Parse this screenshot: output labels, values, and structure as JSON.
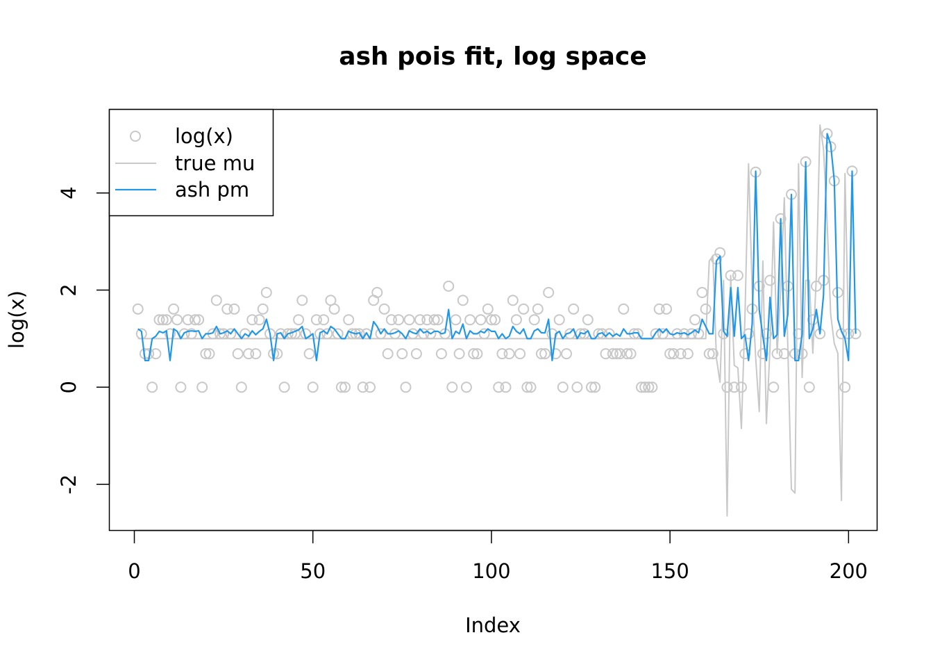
{
  "chart_data": {
    "type": "scatter",
    "title": "ash pois fit, log space",
    "xlabel": "Index",
    "ylabel": "log(x)",
    "xlim": [
      -7,
      208
    ],
    "ylim": [
      -2.95,
      5.72
    ],
    "x_ticks": [
      0,
      50,
      100,
      150,
      200
    ],
    "x_tick_labels": [
      "0",
      "50",
      "100",
      "150",
      "200"
    ],
    "y_ticks": [
      -2,
      0,
      2,
      4
    ],
    "y_tick_labels": [
      "-2",
      "0",
      "2",
      "4"
    ],
    "legend_position": "top-left",
    "colors": {
      "points": "#c8c8c8",
      "true_mu": "#c8c8c8",
      "ash_pm": "#2297e6",
      "frame": "#000000"
    },
    "series": [
      {
        "name": "log(x)",
        "kind": "points",
        "values": [
          1.61,
          1.1,
          0.69,
          0.69,
          0.0,
          0.69,
          1.39,
          1.39,
          1.39,
          1.1,
          1.61,
          1.39,
          0.0,
          1.1,
          1.39,
          1.1,
          1.39,
          1.39,
          0.0,
          0.69,
          0.69,
          1.1,
          1.79,
          1.1,
          1.1,
          1.61,
          1.1,
          1.61,
          0.69,
          0.0,
          1.1,
          0.69,
          1.39,
          0.69,
          1.39,
          1.61,
          1.95,
          1.1,
          0.69,
          0.69,
          1.1,
          0.0,
          1.1,
          1.1,
          1.1,
          1.39,
          1.79,
          1.1,
          0.69,
          0.0,
          1.39,
          1.1,
          1.39,
          1.1,
          1.79,
          1.61,
          1.1,
          0.0,
          0.0,
          1.39,
          1.1,
          1.1,
          1.1,
          0.0,
          1.1,
          0.0,
          1.79,
          1.95,
          1.1,
          1.61,
          0.69,
          1.39,
          1.1,
          1.39,
          0.69,
          0.0,
          1.39,
          1.1,
          0.69,
          1.39,
          1.1,
          1.39,
          1.1,
          1.39,
          1.39,
          0.69,
          1.1,
          2.08,
          0.0,
          1.39,
          0.69,
          1.79,
          0.0,
          1.39,
          0.69,
          0.69,
          1.39,
          1.1,
          1.61,
          1.39,
          1.39,
          0.0,
          0.69,
          0.0,
          0.69,
          1.79,
          1.39,
          0.69,
          1.61,
          0.0,
          0.0,
          1.39,
          1.61,
          0.69,
          0.69,
          1.95,
          1.1,
          0.69,
          1.39,
          0.0,
          0.69,
          1.1,
          1.61,
          0.0,
          1.1,
          1.1,
          1.39,
          0.0,
          0.0,
          1.1,
          1.1,
          0.69,
          1.1,
          0.69,
          0.69,
          0.69,
          1.61,
          0.69,
          0.69,
          1.1,
          1.1,
          0.0,
          0.0,
          0.0,
          0.0,
          1.1,
          1.61,
          1.1,
          1.61,
          0.69,
          0.69,
          1.1,
          0.69,
          1.1,
          0.69,
          1.1,
          1.39,
          1.1,
          1.95,
          1.61,
          0.69,
          0.69,
          2.64,
          2.77,
          1.1,
          0.0,
          2.3,
          0.0,
          2.3,
          0.0,
          0.69,
          1.1,
          1.61,
          4.43,
          2.08,
          0.69,
          1.1,
          2.2,
          0.0,
          0.69,
          3.47,
          0.69,
          2.08,
          3.97,
          0.69,
          1.1,
          0.69,
          4.64,
          0.0,
          1.39,
          2.08,
          1.1,
          2.2,
          5.22,
          4.95,
          4.25,
          1.95,
          1.1,
          0.0,
          1.1,
          4.45,
          1.1
        ]
      },
      {
        "name": "true mu",
        "kind": "line",
        "values": [
          1.0,
          1.0,
          1.0,
          1.0,
          1.0,
          1.0,
          1.0,
          1.0,
          1.0,
          1.0,
          1.0,
          1.0,
          1.0,
          1.0,
          1.0,
          1.0,
          1.0,
          1.0,
          1.0,
          1.0,
          1.0,
          1.0,
          1.0,
          1.0,
          1.0,
          1.0,
          1.0,
          1.0,
          1.0,
          1.0,
          1.0,
          1.0,
          1.0,
          1.0,
          1.0,
          1.0,
          1.0,
          1.0,
          1.0,
          1.0,
          1.0,
          1.0,
          1.0,
          1.0,
          1.0,
          1.0,
          1.0,
          1.0,
          1.0,
          1.0,
          1.0,
          1.0,
          1.0,
          1.0,
          1.0,
          1.0,
          1.0,
          1.0,
          1.0,
          1.0,
          1.0,
          1.0,
          1.0,
          1.0,
          1.0,
          1.0,
          1.0,
          1.0,
          1.0,
          1.0,
          1.0,
          1.0,
          1.0,
          1.0,
          1.0,
          1.0,
          1.0,
          1.0,
          1.0,
          1.0,
          1.0,
          1.0,
          1.0,
          1.0,
          1.0,
          1.0,
          1.0,
          1.0,
          1.0,
          1.0,
          1.0,
          1.0,
          1.0,
          1.0,
          1.0,
          1.0,
          1.0,
          1.0,
          1.0,
          1.0,
          1.0,
          1.0,
          1.0,
          1.0,
          1.0,
          1.0,
          1.0,
          1.0,
          1.0,
          1.0,
          1.0,
          1.0,
          1.0,
          1.0,
          1.0,
          1.0,
          1.0,
          1.0,
          1.0,
          1.0,
          1.0,
          1.0,
          1.0,
          1.0,
          1.0,
          1.0,
          1.0,
          1.0,
          1.0,
          1.0,
          1.0,
          1.0,
          1.0,
          1.0,
          1.0,
          1.0,
          1.0,
          1.0,
          1.0,
          1.0,
          1.0,
          1.0,
          1.0,
          1.0,
          1.0,
          1.0,
          1.0,
          1.0,
          1.0,
          1.0,
          1.0,
          1.0,
          1.0,
          1.0,
          1.0,
          1.0,
          1.0,
          1.0,
          1.0,
          1.0,
          2.6,
          2.7,
          0.6,
          0.1,
          2.2,
          -2.65,
          2.3,
          0.45,
          0.4,
          -0.85,
          1.5,
          4.6,
          2.0,
          0.6,
          -0.5,
          2.6,
          -0.75,
          0.8,
          3.4,
          0.7,
          2.0,
          3.9,
          0.8,
          -2.1,
          -2.18,
          4.6,
          0.2,
          2.2,
          2.2,
          0.7,
          2.3,
          5.4,
          4.9,
          3.4,
          1.5,
          0.9,
          0.7,
          -2.33,
          4.4,
          1.1
        ]
      },
      {
        "name": "ash pm",
        "kind": "line",
        "values": [
          1.2,
          1.15,
          0.55,
          0.55,
          1.0,
          1.05,
          1.15,
          1.12,
          1.16,
          0.55,
          1.2,
          1.15,
          1.0,
          1.12,
          1.15,
          1.16,
          1.15,
          1.16,
          1.0,
          1.1,
          1.1,
          1.12,
          1.25,
          1.1,
          1.12,
          1.16,
          1.1,
          1.2,
          1.1,
          1.0,
          1.1,
          1.05,
          1.16,
          1.08,
          1.15,
          1.2,
          1.4,
          1.1,
          0.55,
          1.1,
          1.12,
          1.0,
          1.1,
          1.12,
          1.15,
          1.18,
          1.25,
          1.0,
          1.05,
          1.1,
          0.55,
          1.12,
          1.16,
          1.1,
          1.25,
          1.2,
          1.1,
          1.0,
          1.0,
          1.15,
          1.12,
          1.1,
          1.12,
          1.0,
          1.12,
          1.0,
          1.35,
          1.25,
          1.1,
          1.2,
          1.1,
          1.1,
          1.12,
          1.16,
          1.1,
          1.0,
          1.16,
          1.12,
          1.1,
          1.2,
          1.12,
          1.15,
          1.1,
          1.15,
          1.15,
          1.1,
          1.12,
          1.6,
          1.0,
          1.15,
          1.1,
          1.3,
          1.0,
          1.16,
          1.1,
          1.1,
          1.15,
          1.12,
          1.2,
          1.15,
          1.15,
          1.0,
          1.1,
          1.0,
          1.05,
          1.25,
          1.15,
          1.1,
          1.2,
          1.0,
          1.0,
          1.16,
          1.2,
          1.12,
          1.12,
          1.4,
          0.55,
          1.1,
          1.15,
          1.0,
          1.1,
          1.12,
          1.2,
          1.0,
          1.12,
          1.1,
          1.16,
          1.0,
          1.0,
          1.1,
          1.12,
          1.05,
          1.12,
          1.05,
          1.1,
          1.05,
          1.2,
          1.1,
          1.1,
          1.12,
          1.12,
          1.0,
          1.0,
          1.0,
          1.0,
          1.12,
          1.2,
          1.12,
          1.2,
          1.1,
          1.08,
          1.12,
          1.1,
          1.12,
          1.08,
          1.12,
          1.18,
          1.12,
          1.4,
          1.25,
          1.1,
          1.1,
          2.6,
          2.7,
          1.15,
          1.05,
          2.05,
          1.05,
          2.05,
          1.0,
          1.08,
          0.55,
          1.3,
          4.45,
          1.6,
          1.05,
          0.55,
          1.85,
          1.0,
          1.08,
          3.47,
          1.05,
          1.5,
          3.97,
          0.55,
          0.55,
          1.1,
          4.64,
          1.0,
          1.2,
          1.6,
          1.1,
          1.9,
          5.22,
          5.0,
          4.25,
          1.4,
          1.15,
          1.0,
          0.55,
          4.45,
          1.1
        ]
      }
    ]
  }
}
